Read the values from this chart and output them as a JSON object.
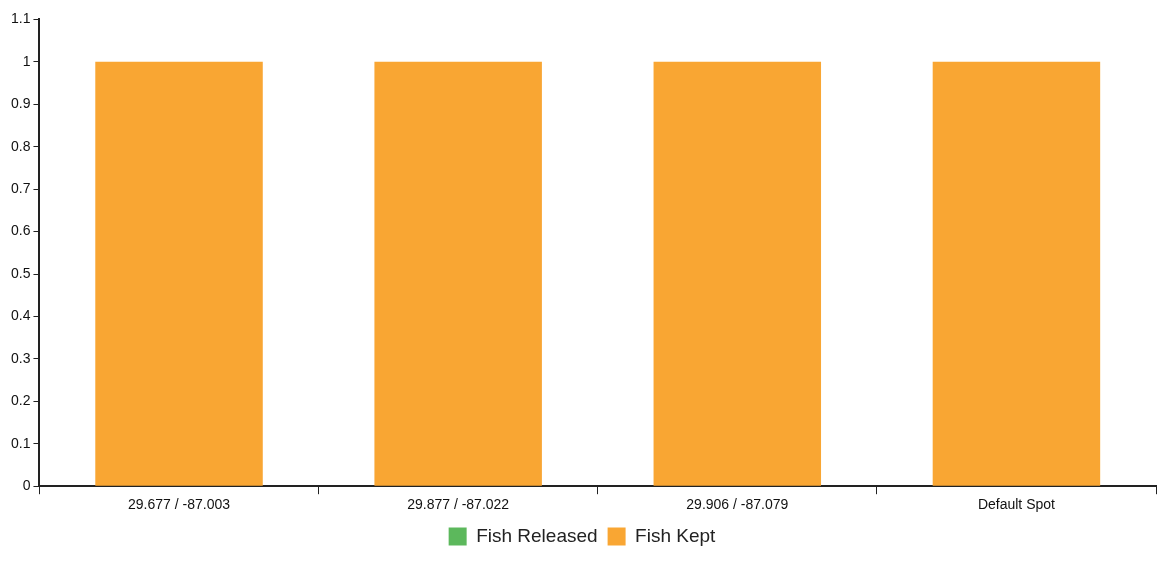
{
  "chart_data": {
    "type": "bar",
    "stacked": true,
    "categories": [
      "29.677 / -87.003",
      "29.877 / -87.022",
      "29.906 / -87.079",
      "Default Spot"
    ],
    "series": [
      {
        "name": "Fish Released",
        "color": "#5cb85c",
        "values": [
          0,
          0,
          0,
          0
        ]
      },
      {
        "name": "Fish Kept",
        "color": "#f9a633",
        "values": [
          1,
          1,
          1,
          1
        ]
      }
    ],
    "ylim": [
      0,
      1.1
    ],
    "yticks": [
      0,
      0.1,
      0.2,
      0.3,
      0.4,
      0.5,
      0.6,
      0.7,
      0.8,
      0.9,
      1,
      1.1
    ],
    "grid": false,
    "legend": "bottom"
  }
}
